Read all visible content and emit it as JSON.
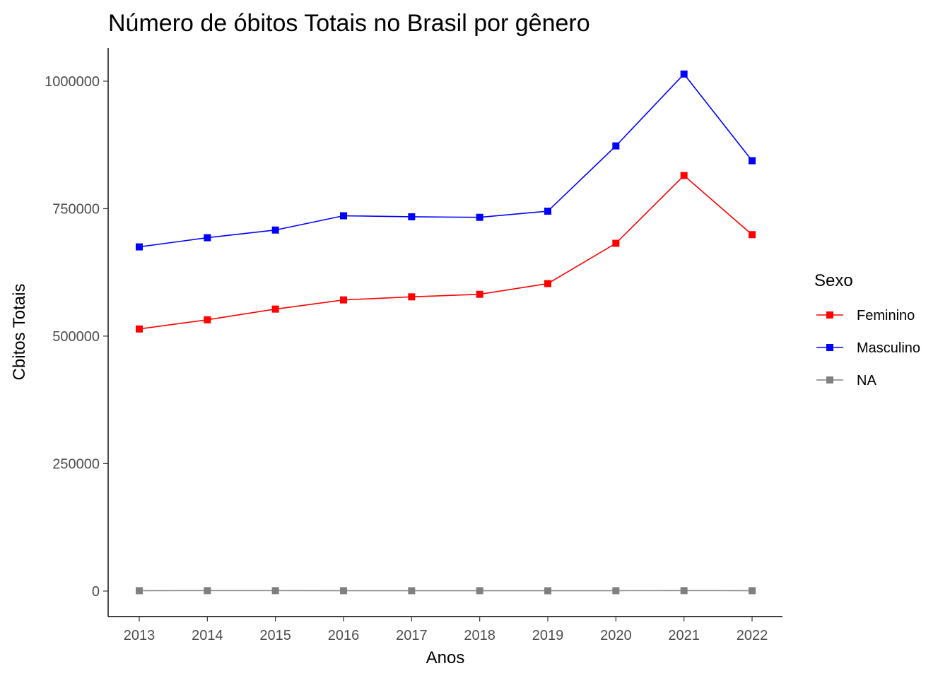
{
  "chart_data": {
    "type": "line",
    "title": "Número de óbitos Totais no Brasil por gênero",
    "xlabel": "Anos",
    "ylabel": "Cbitos Totais",
    "x": [
      2013,
      2014,
      2015,
      2016,
      2017,
      2018,
      2019,
      2020,
      2021,
      2022
    ],
    "x_tick_labels": [
      "2013",
      "2014",
      "2015",
      "2016",
      "2017",
      "2018",
      "2019",
      "2020",
      "2021",
      "2022"
    ],
    "y_ticks": [
      0,
      250000,
      500000,
      750000,
      1000000
    ],
    "y_tick_labels": [
      "0",
      "250000",
      "500000",
      "750000",
      "1000000"
    ],
    "ylim": [
      -50000,
      1065000
    ],
    "grid": false,
    "legend": {
      "title": "Sexo",
      "position": "right"
    },
    "series": [
      {
        "name": "Feminino",
        "color": "#ff0000",
        "values": [
          514000,
          532000,
          553000,
          571000,
          577000,
          582000,
          603000,
          682000,
          815000,
          699000
        ]
      },
      {
        "name": "Masculino",
        "color": "#0000ff",
        "values": [
          675000,
          693000,
          708000,
          736000,
          734000,
          733000,
          745000,
          873000,
          1014000,
          844000
        ]
      },
      {
        "name": "NA",
        "color": "#808080",
        "values": [
          700,
          800,
          800,
          700,
          700,
          700,
          600,
          700,
          800,
          700
        ]
      }
    ]
  }
}
